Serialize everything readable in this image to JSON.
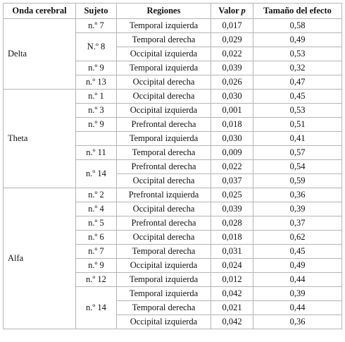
{
  "table": {
    "header": [
      "Onda cerebral",
      "Sujeto",
      "Regiones",
      {
        "text": "Valor",
        "italic": "p"
      },
      "Tamaño del efecto"
    ],
    "groups": [
      {
        "wave": "Delta",
        "subjects": [
          {
            "subject": "n.º 7",
            "rows": [
              [
                "Temporal izquierda",
                "0,017",
                "0,58"
              ]
            ]
          },
          {
            "subject": "N.º 8",
            "rows": [
              [
                "Temporal derecha",
                "0,029",
                "0,49"
              ],
              [
                "Occipital izquierda",
                "0,022",
                "0,53"
              ]
            ]
          },
          {
            "subject": "n.º 9",
            "rows": [
              [
                "Temporal izquierda",
                "0,039",
                "0,32"
              ]
            ]
          },
          {
            "subject": "n.º 13",
            "rows": [
              [
                "Occipital derecha",
                "0,026",
                "0,47"
              ]
            ]
          }
        ]
      },
      {
        "wave": "Theta",
        "subjects": [
          {
            "subject": "n.º 1",
            "rows": [
              [
                "Occipital derecha",
                "0,030",
                "0,45"
              ]
            ]
          },
          {
            "subject": "n.º 3",
            "rows": [
              [
                "Occipital izquierda",
                "0,001",
                "0,53"
              ]
            ]
          },
          {
            "subject": "n.º 9",
            "rows": [
              [
                "Prefrontal derecha",
                "0,018",
                "0,51"
              ]
            ]
          },
          {
            "subject": null,
            "rows": [
              [
                "Temporal izquierda",
                "0,030",
                "0,41"
              ]
            ]
          },
          {
            "subject": "n.º 11",
            "rows": [
              [
                "Temporal derecha",
                "0,009",
                "0,57"
              ]
            ]
          },
          {
            "subject": "n.º 14",
            "rows": [
              [
                "Prefrontal derecha",
                "0,022",
                "0,54"
              ],
              [
                "Occipital derecha",
                "0,037",
                "0,59"
              ]
            ]
          }
        ]
      },
      {
        "wave": "Alfa",
        "subjects": [
          {
            "subject": "n.º 2",
            "rows": [
              [
                "Prefrontal izquierda",
                "0,025",
                "0,36"
              ]
            ]
          },
          {
            "subject": "n.º 4",
            "rows": [
              [
                "Occipital derecha",
                "0,039",
                "0,39"
              ]
            ]
          },
          {
            "subject": "n.º 5",
            "rows": [
              [
                "Prefrontal derecha",
                "0,028",
                "0,37"
              ]
            ]
          },
          {
            "subject": "n.º 6",
            "rows": [
              [
                "Occipital derecha",
                "0,018",
                "0,62"
              ]
            ]
          },
          {
            "subject": "n.º 7",
            "rows": [
              [
                "Temporal derecha",
                "0,031",
                "0,45"
              ]
            ]
          },
          {
            "subject": "n.º 9",
            "rows": [
              [
                "Occipital izquierda",
                "0,024",
                "0,49"
              ]
            ]
          },
          {
            "subject": "n.º 12",
            "rows": [
              [
                "Temporal izquierda",
                "0,012",
                "0,44"
              ]
            ]
          },
          {
            "subject": "n.º 14",
            "rows": [
              [
                "Temporal izquierda",
                "0,042",
                "0,39"
              ],
              [
                "Temporal derecha",
                "0,021",
                "0,44"
              ],
              [
                "Occipital izquierda",
                "0,042",
                "0,36"
              ]
            ]
          }
        ]
      }
    ]
  }
}
